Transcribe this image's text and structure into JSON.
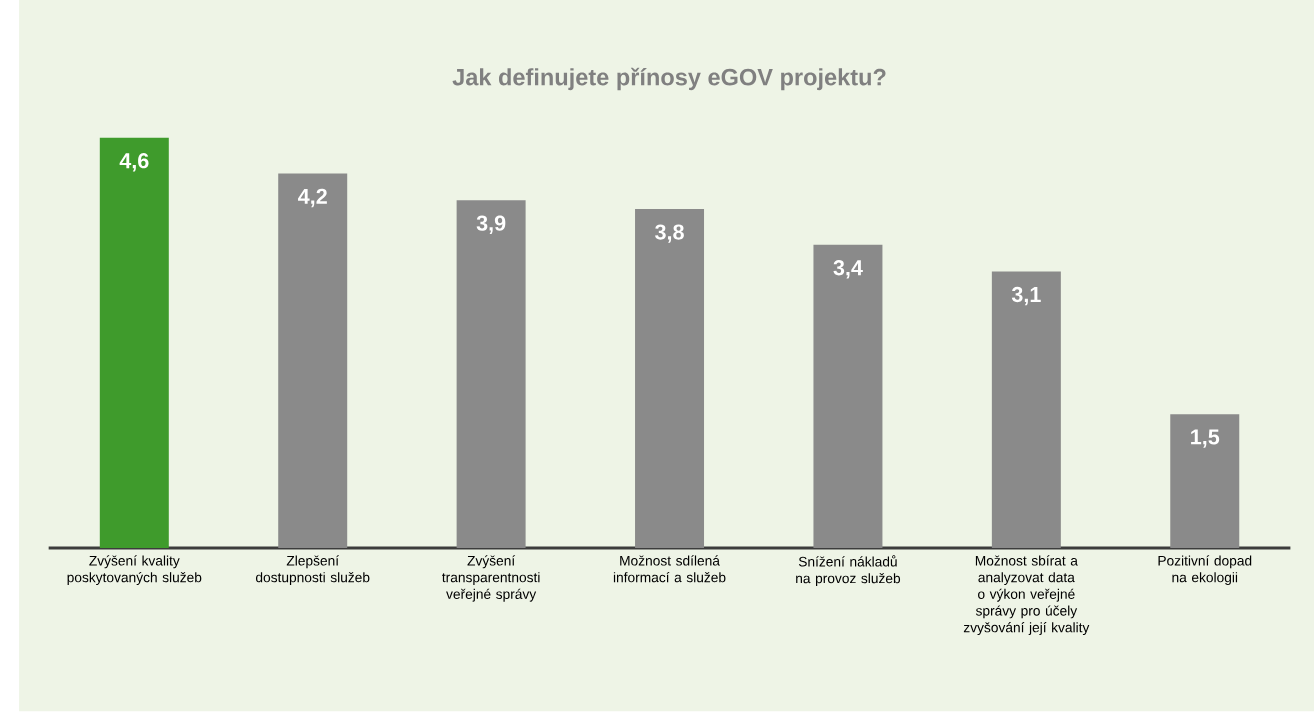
{
  "chart_data": {
    "type": "bar",
    "title": "Jak definujete přínosy eGOV projektu?",
    "categories": [
      "Zvýšení kvality poskytovaných služeb",
      "Zlepšení dostupnosti služeb",
      "Zvýšení transparentnosti veřejné správy",
      "Možnost sdílená informací a služeb",
      "Snížení nákladů na provoz služeb",
      "Možnost sbírat a analyzovat data o výkon veřejné správy pro účely zvyšování její kvality",
      "Pozitivní dopad na ekologii"
    ],
    "values": [
      4.6,
      4.2,
      3.9,
      3.8,
      3.4,
      3.1,
      1.5
    ],
    "value_labels": [
      "4,6",
      "4,2",
      "3,9",
      "3,8",
      "3,4",
      "3,1",
      "1,5"
    ],
    "colors": [
      "#3f9b2c",
      "#8a8a8a",
      "#8a8a8a",
      "#8a8a8a",
      "#8a8a8a",
      "#8a8a8a",
      "#8a8a8a"
    ]
  }
}
